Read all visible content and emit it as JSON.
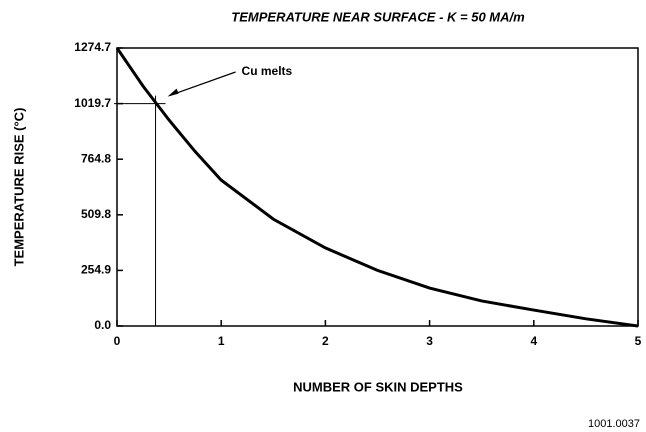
{
  "chart_data": {
    "type": "line",
    "title": "TEMPERATURE NEAR SURFACE - K = 50 MA/m",
    "xlabel": "NUMBER OF SKIN DEPTHS",
    "ylabel": "TEMPERATURE RISE (°C)",
    "footer": "1001.0037",
    "x": [
      0,
      0.25,
      0.5,
      0.75,
      1,
      1.5,
      2,
      2.5,
      3,
      3.5,
      4,
      4.5,
      5
    ],
    "values": [
      1274.7,
      1100,
      944,
      800,
      669,
      490,
      358,
      255,
      174,
      115,
      73,
      33,
      0
    ],
    "color": "#000000",
    "xlim": [
      0,
      5
    ],
    "ylim": [
      0,
      1274.7
    ],
    "xticks": [
      0,
      1,
      2,
      3,
      4,
      5
    ],
    "yticks": [
      {
        "value": 0,
        "label": "0.0"
      },
      254.9,
      509.8,
      764.8,
      1019.7,
      1274.7
    ],
    "annotations": [
      {
        "text": "Cu melts",
        "x": 0.37,
        "y": 1019.7
      }
    ]
  }
}
